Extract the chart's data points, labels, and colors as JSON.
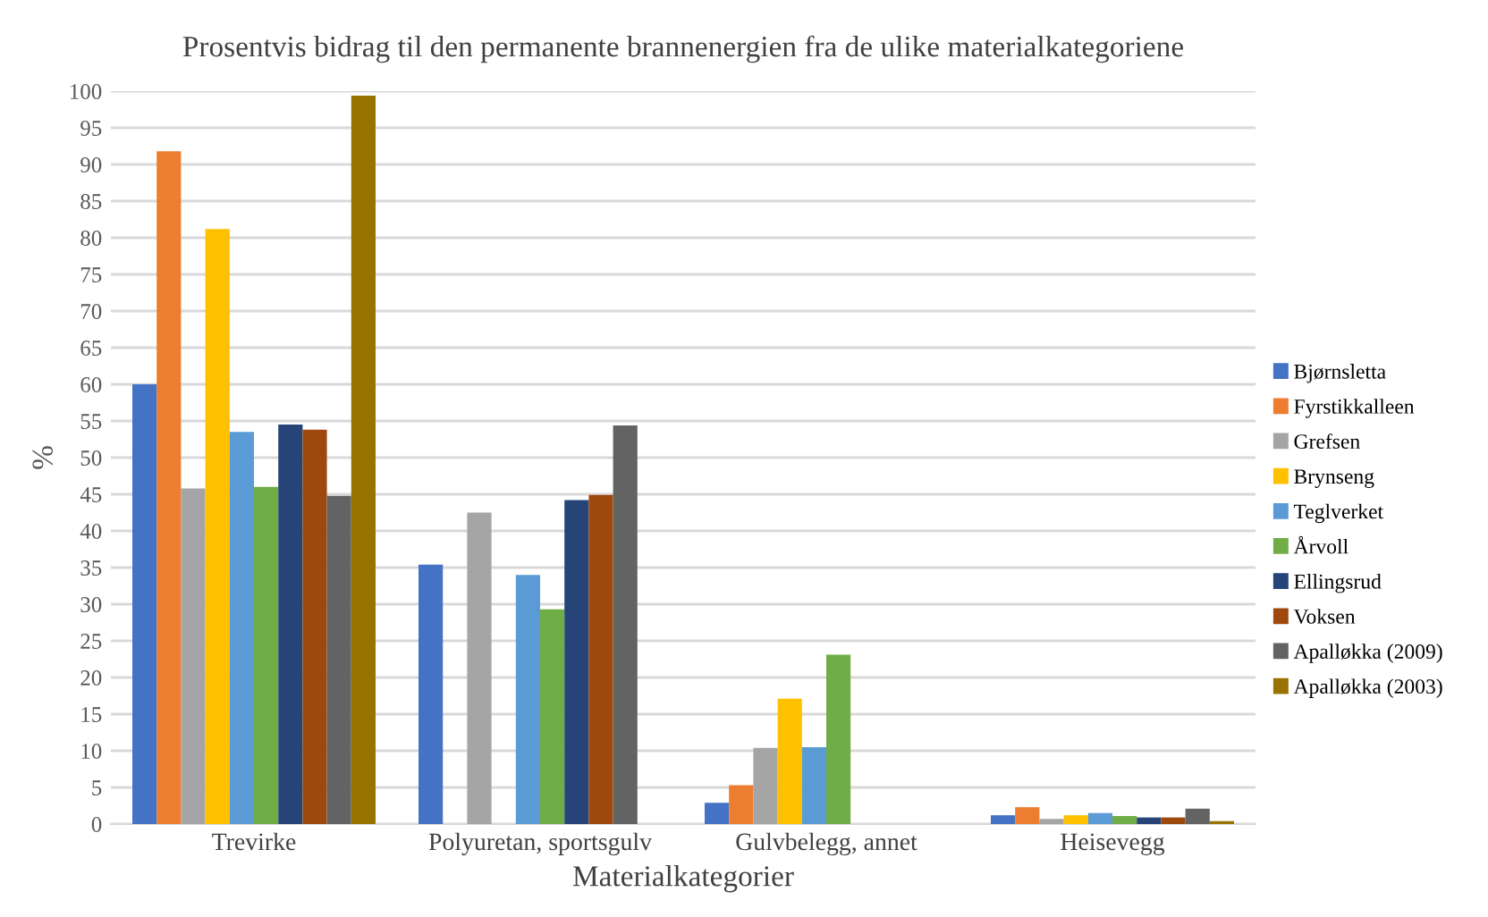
{
  "chart_data": {
    "type": "bar",
    "title": "Prosentvis bidrag til den permanente brannenergien fra de ulike materialkategoriene",
    "xlabel": "Materialkategorier",
    "ylabel": "%",
    "categories": [
      "Trevirke",
      "Polyuretan, sportsgulv",
      "Gulvbelegg, annet",
      "Heisevegg"
    ],
    "series": [
      {
        "name": "Bjørnsletta",
        "color": "#4472c4",
        "values": [
          60,
          35.4,
          2.9,
          1.2
        ]
      },
      {
        "name": "Fyrstikkalleen",
        "color": "#ed7d31",
        "values": [
          91.8,
          null,
          5.3,
          2.3
        ]
      },
      {
        "name": "Grefsen",
        "color": "#a5a5a5",
        "values": [
          45.8,
          42.5,
          10.4,
          0.7
        ]
      },
      {
        "name": "Brynseng",
        "color": "#ffc000",
        "values": [
          81.2,
          null,
          17.1,
          1.2
        ]
      },
      {
        "name": "Teglverket",
        "color": "#5b9bd5",
        "values": [
          53.5,
          34,
          10.5,
          1.5
        ]
      },
      {
        "name": "Årvoll",
        "color": "#70ad47",
        "values": [
          46,
          29.3,
          23.1,
          1.1
        ]
      },
      {
        "name": "Ellingsrud",
        "color": "#264478",
        "values": [
          54.5,
          44.2,
          null,
          0.9
        ]
      },
      {
        "name": "Voksen",
        "color": "#9e480e",
        "values": [
          53.8,
          44.9,
          null,
          0.9
        ]
      },
      {
        "name": "Apalløkka (2009)",
        "color": "#636363",
        "values": [
          44.8,
          54.4,
          null,
          2.1
        ]
      },
      {
        "name": "Apalløkka (2003)",
        "color": "#997300",
        "values": [
          99.4,
          null,
          null,
          0.4
        ]
      }
    ],
    "ylim": [
      0,
      100
    ],
    "yticks": [
      0,
      5,
      10,
      15,
      20,
      25,
      30,
      35,
      40,
      45,
      50,
      55,
      60,
      65,
      70,
      75,
      80,
      85,
      90,
      95,
      100
    ],
    "grid": "y",
    "legend": "right"
  }
}
